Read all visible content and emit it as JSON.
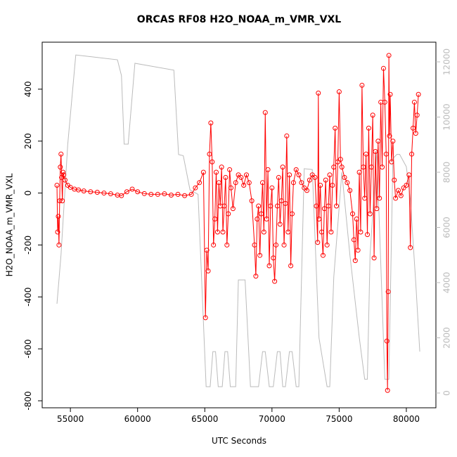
{
  "chart_data": {
    "type": "line",
    "title": "ORCAS RF08 H2O_NOAA_m_VMR_VXL",
    "x_label": "UTC Seconds",
    "y_label": "H2O_NOAA_m_VMR_VXL",
    "xlim": [
      52900,
      82200
    ],
    "xticks": [
      55000,
      60000,
      65000,
      70000,
      75000,
      80000
    ],
    "ylim": [
      -827,
      581
    ],
    "yticks": [
      -800,
      -600,
      -400,
      -200,
      0,
      200,
      400
    ],
    "y2lim": [
      -535,
      12713
    ],
    "y2ticks": [
      0,
      2000,
      4000,
      6000,
      8000,
      10000,
      12000
    ],
    "series": [
      {
        "color": "#ff0000",
        "markers": true,
        "x": [
          54000,
          54050,
          54100,
          54150,
          54200,
          54250,
          54300,
          54350,
          54400,
          54450,
          54500,
          54600,
          54800,
          55000,
          55300,
          55600,
          56000,
          56500,
          57000,
          57500,
          58000,
          58500,
          58800,
          59200,
          59600,
          60000,
          60500,
          61000,
          61500,
          62000,
          62500,
          63000,
          63500,
          64000,
          64300,
          64600,
          64900,
          65050,
          65150,
          65250,
          65350,
          65450,
          65550,
          65650,
          65750,
          65850,
          65950,
          66050,
          66150,
          66250,
          66350,
          66450,
          66550,
          66650,
          66750,
          66850,
          66950,
          67100,
          67300,
          67500,
          67700,
          67900,
          68100,
          68300,
          68500,
          68700,
          68800,
          68900,
          69000,
          69100,
          69200,
          69300,
          69400,
          69500,
          69600,
          69700,
          69800,
          69900,
          70000,
          70100,
          70200,
          70300,
          70400,
          70500,
          70600,
          70700,
          70800,
          70900,
          71000,
          71100,
          71200,
          71300,
          71400,
          71500,
          71600,
          71800,
          72000,
          72200,
          72400,
          72600,
          72800,
          73000,
          73200,
          73300,
          73400,
          73450,
          73500,
          73600,
          73700,
          73800,
          73900,
          74000,
          74100,
          74200,
          74300,
          74400,
          74500,
          74600,
          74700,
          74800,
          74900,
          75000,
          75100,
          75200,
          75400,
          75600,
          75800,
          76000,
          76100,
          76200,
          76300,
          76400,
          76500,
          76600,
          76700,
          76800,
          76900,
          77000,
          77100,
          77200,
          77300,
          77400,
          77500,
          77600,
          77700,
          77800,
          77900,
          78000,
          78100,
          78200,
          78300,
          78400,
          78500,
          78550,
          78600,
          78650,
          78700,
          78750,
          78800,
          78900,
          79000,
          79100,
          79200,
          79400,
          79600,
          79800,
          80000,
          80200,
          80300,
          80400,
          80500,
          80600,
          80700,
          80800,
          80900
        ],
        "values": [
          30,
          -150,
          -90,
          -200,
          -30,
          100,
          150,
          60,
          -30,
          80,
          70,
          50,
          30,
          22,
          15,
          12,
          8,
          5,
          3,
          0,
          -3,
          -8,
          -10,
          5,
          15,
          5,
          -2,
          -5,
          -5,
          -3,
          -8,
          -5,
          -10,
          -5,
          20,
          40,
          80,
          -480,
          -220,
          -300,
          150,
          270,
          120,
          -200,
          -100,
          80,
          -150,
          40,
          -50,
          100,
          -150,
          -50,
          60,
          -200,
          -80,
          90,
          20,
          -60,
          40,
          70,
          60,
          30,
          70,
          40,
          -30,
          -200,
          -320,
          -100,
          -50,
          -240,
          -80,
          40,
          -150,
          310,
          -100,
          90,
          -280,
          -50,
          20,
          -250,
          -340,
          -200,
          -50,
          60,
          -120,
          -30,
          100,
          -200,
          -40,
          220,
          -150,
          70,
          -280,
          -80,
          40,
          90,
          70,
          40,
          20,
          10,
          50,
          70,
          60,
          -50,
          -190,
          385,
          -100,
          30,
          -150,
          -240,
          -60,
          50,
          -200,
          -50,
          70,
          -150,
          30,
          100,
          250,
          -50,
          120,
          390,
          130,
          100,
          60,
          40,
          10,
          -80,
          -180,
          -260,
          -100,
          -220,
          80,
          -150,
          415,
          100,
          -20,
          150,
          -160,
          250,
          -80,
          100,
          300,
          -250,
          160,
          -60,
          200,
          -20,
          350,
          100,
          480,
          350,
          150,
          -570,
          -760,
          -380,
          530,
          220,
          380,
          120,
          200,
          50,
          -20,
          10,
          -10,
          20,
          30,
          70,
          -210,
          150,
          250,
          350,
          230,
          300,
          380
        ]
      },
      {
        "color": "#bbbbbb",
        "axis": "y2",
        "markers": false,
        "x": [
          54000,
          54300,
          54800,
          55400,
          58500,
          58800,
          59000,
          59300,
          59800,
          62700,
          63050,
          63400,
          63900,
          64500,
          65100,
          65400,
          65600,
          65800,
          66000,
          66300,
          66500,
          66700,
          66900,
          67300,
          67500,
          68000,
          68400,
          69000,
          69300,
          69500,
          69800,
          70100,
          70400,
          70600,
          70800,
          71000,
          71300,
          71500,
          71800,
          72000,
          72400,
          73000,
          73500,
          74100,
          74300,
          74600,
          75200,
          75800,
          76500,
          76900,
          77100,
          77300,
          77800,
          78400,
          78700,
          79000,
          79300,
          79500,
          80000,
          80300,
          80700,
          81000
        ],
        "values": [
          3235,
          5000,
          9000,
          12250,
          12075,
          11500,
          9020,
          9020,
          11950,
          11700,
          8640,
          8600,
          7360,
          7200,
          230,
          230,
          1500,
          1500,
          230,
          230,
          1500,
          1500,
          230,
          230,
          4100,
          4100,
          230,
          230,
          1500,
          1500,
          230,
          230,
          1500,
          1500,
          230,
          230,
          1500,
          1500,
          230,
          230,
          8130,
          8100,
          2000,
          230,
          230,
          4200,
          8000,
          5000,
          2000,
          500,
          500,
          5000,
          8800,
          500,
          500,
          8500,
          8650,
          8650,
          8200,
          7000,
          4000,
          1500
        ]
      }
    ]
  }
}
